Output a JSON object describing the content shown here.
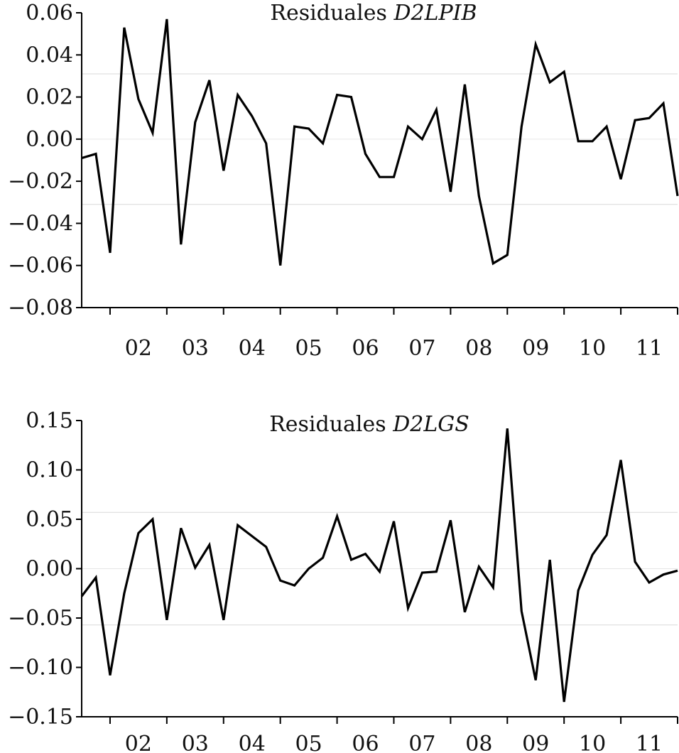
{
  "chart_data": [
    {
      "type": "line",
      "title_prefix": "Residuales ",
      "title_var": "D2LPIB",
      "ylim": [
        -0.08,
        0.06
      ],
      "yticks": [
        0.06,
        0.04,
        0.02,
        0.0,
        -0.02,
        -0.04,
        -0.06,
        -0.08
      ],
      "ytick_labels": [
        "0.06",
        "0.04",
        "0.02",
        "0.00",
        "−0.02",
        "−0.04",
        "−0.06",
        "−0.08"
      ],
      "xtick_labels": [
        "02",
        "03",
        "04",
        "05",
        "06",
        "07",
        "08",
        "09",
        "10",
        "11"
      ],
      "reference_lines": [
        0.031,
        -0.031
      ],
      "series": [
        {
          "values": [
            -0.009,
            -0.007,
            -0.054,
            0.053,
            0.019,
            0.003,
            0.057,
            -0.05,
            0.008,
            0.028,
            -0.015,
            0.021,
            0.011,
            -0.002,
            -0.06,
            0.006,
            0.005,
            -0.002,
            0.021,
            0.02,
            -0.007,
            -0.018,
            -0.018,
            0.006,
            0.0,
            0.014,
            -0.025,
            0.026,
            -0.027,
            -0.059,
            -0.055,
            0.006,
            0.045,
            0.027,
            0.032,
            -0.001,
            -0.001,
            0.006,
            -0.019,
            0.009,
            0.01,
            0.017,
            -0.027
          ]
        }
      ]
    },
    {
      "type": "line",
      "title_prefix": "Residuales ",
      "title_var": "D2LGS",
      "ylim": [
        -0.15,
        0.15
      ],
      "yticks": [
        0.15,
        0.1,
        0.05,
        0.0,
        -0.05,
        -0.1,
        -0.15
      ],
      "ytick_labels": [
        "0.15",
        "0.10",
        "0.05",
        "0.00",
        "−0.05",
        "−0.10",
        "−0.15"
      ],
      "xtick_labels": [
        "02",
        "03",
        "04",
        "05",
        "06",
        "07",
        "08",
        "09",
        "10",
        "11"
      ],
      "reference_lines": [
        0.057,
        -0.057
      ],
      "series": [
        {
          "values": [
            -0.028,
            -0.009,
            -0.108,
            -0.025,
            0.036,
            0.05,
            -0.052,
            0.041,
            0.001,
            0.024,
            -0.052,
            0.044,
            0.033,
            0.022,
            -0.012,
            -0.017,
            -0.0,
            0.011,
            0.053,
            0.009,
            0.015,
            -0.003,
            0.048,
            -0.04,
            -0.004,
            -0.003,
            0.049,
            -0.044,
            0.002,
            -0.019,
            0.142,
            -0.043,
            -0.113,
            0.009,
            -0.135,
            -0.022,
            0.014,
            0.034,
            0.11,
            0.007,
            -0.014,
            -0.006,
            -0.002
          ]
        }
      ]
    }
  ]
}
